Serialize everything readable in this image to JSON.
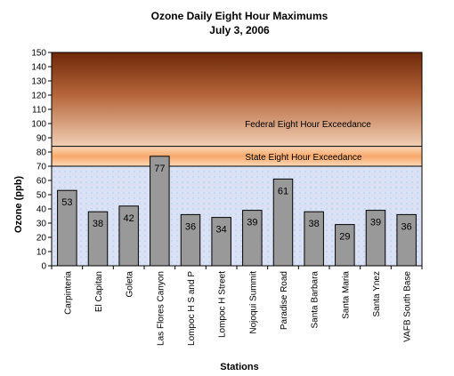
{
  "chart_data": {
    "type": "bar",
    "title": "Ozone Daily Eight Hour Maximums",
    "subtitle": "July 3, 2006",
    "xlabel": "Stations",
    "ylabel": "Ozone (ppb)",
    "ylim": [
      0,
      150
    ],
    "yticks": [
      0,
      10,
      20,
      30,
      40,
      50,
      60,
      70,
      80,
      90,
      100,
      110,
      120,
      130,
      140,
      150
    ],
    "categories": [
      "Carpinteria",
      "El Capitan",
      "Goleta",
      "Las Flores Canyon",
      "Lompoc H S and P",
      "Lompoc H Street",
      "Nojoqui Summit",
      "Paradise Road",
      "Santa Barbara",
      "Santa Maria",
      "Santa Ynez",
      "VAFB South Base"
    ],
    "values": [
      53,
      38,
      42,
      77,
      36,
      34,
      39,
      61,
      38,
      29,
      39,
      36
    ],
    "bands": [
      {
        "label": "State Eight Hour Exceedance",
        "from": 70,
        "to": 84,
        "color": "#fbb98a"
      },
      {
        "label": "Federal Eight Hour Exceedance",
        "from": 84,
        "to": 150,
        "color_top": "#7a2e0a",
        "color_bottom": "#e8bfa0"
      }
    ],
    "bar_color": "#999999",
    "legend": "none",
    "grid": false
  }
}
